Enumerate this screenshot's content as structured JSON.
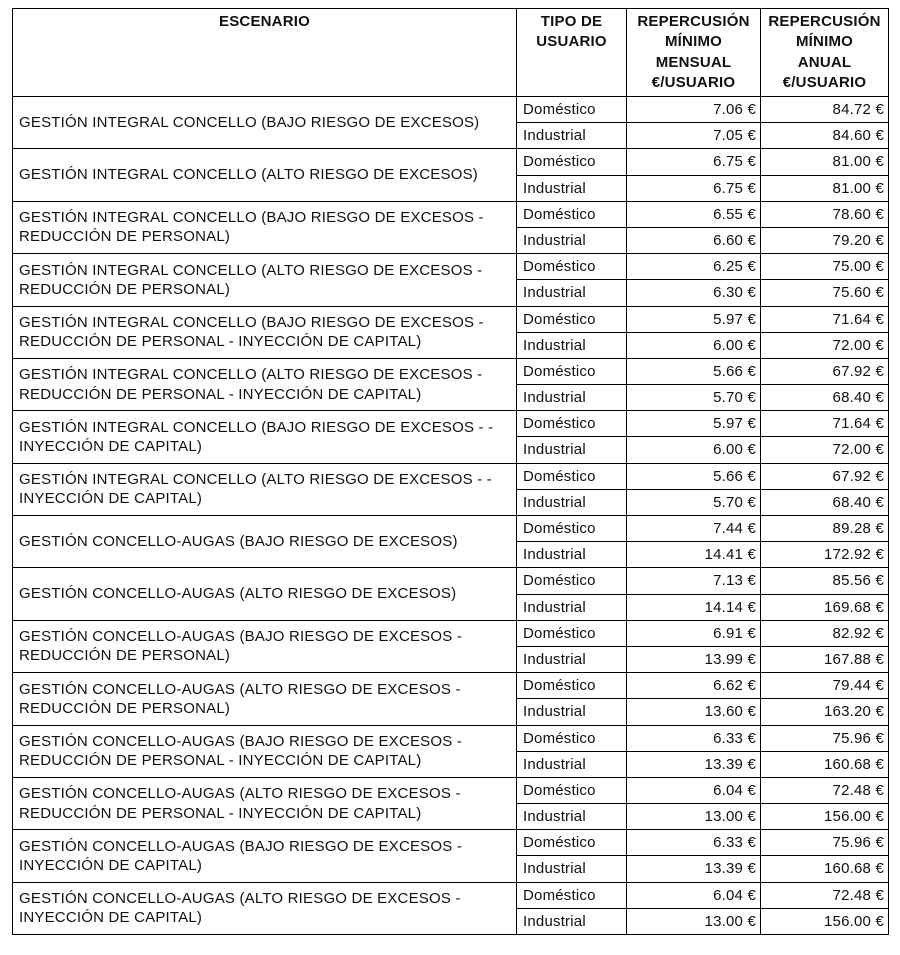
{
  "header": {
    "escenario": "ESCENARIO",
    "tipo": "TIPO DE\nUSUARIO",
    "mensual": "REPERCUSIÓN\nMÍNIMO\nMENSUAL\n€/USUARIO",
    "anual": "REPERCUSIÓN\nMÍNIMO\nANUAL\n€/USUARIO"
  },
  "groups": [
    {
      "escenario": "GESTIÓN INTEGRAL CONCELLO (BAJO RIESGO DE EXCESOS)",
      "rows": [
        {
          "tipo": "Doméstico",
          "mensual": "7.06 €",
          "anual": "84.72 €"
        },
        {
          "tipo": "Industrial",
          "mensual": "7.05 €",
          "anual": "84.60 €"
        }
      ]
    },
    {
      "escenario": "GESTIÓN INTEGRAL CONCELLO (ALTO RIESGO DE EXCESOS)",
      "rows": [
        {
          "tipo": "Doméstico",
          "mensual": "6.75 €",
          "anual": "81.00 €"
        },
        {
          "tipo": "Industrial",
          "mensual": "6.75 €",
          "anual": "81.00 €"
        }
      ]
    },
    {
      "escenario": "GESTIÓN INTEGRAL CONCELLO (BAJO RIESGO DE EXCESOS - REDUCCIÓN DE PERSONAL)",
      "rows": [
        {
          "tipo": "Doméstico",
          "mensual": "6.55 €",
          "anual": "78.60 €"
        },
        {
          "tipo": "Industrial",
          "mensual": "6.60 €",
          "anual": "79.20 €"
        }
      ]
    },
    {
      "escenario": "GESTIÓN INTEGRAL CONCELLO (ALTO RIESGO DE EXCESOS - REDUCCIÓN DE PERSONAL)",
      "rows": [
        {
          "tipo": "Doméstico",
          "mensual": "6.25 €",
          "anual": "75.00 €"
        },
        {
          "tipo": "Industrial",
          "mensual": "6.30 €",
          "anual": "75.60 €"
        }
      ]
    },
    {
      "escenario": "GESTIÓN INTEGRAL CONCELLO (BAJO RIESGO DE EXCESOS - REDUCCIÓN DE PERSONAL - INYECCIÓN DE CAPITAL)",
      "rows": [
        {
          "tipo": "Doméstico",
          "mensual": "5.97 €",
          "anual": "71.64 €"
        },
        {
          "tipo": "Industrial",
          "mensual": "6.00 €",
          "anual": "72.00 €"
        }
      ]
    },
    {
      "escenario": "GESTIÓN INTEGRAL CONCELLO (ALTO RIESGO DE EXCESOS - REDUCCIÓN DE PERSONAL - INYECCIÓN DE CAPITAL)",
      "rows": [
        {
          "tipo": "Doméstico",
          "mensual": "5.66 €",
          "anual": "67.92 €"
        },
        {
          "tipo": "Industrial",
          "mensual": "5.70 €",
          "anual": "68.40 €"
        }
      ]
    },
    {
      "escenario": "GESTIÓN INTEGRAL CONCELLO (BAJO RIESGO DE EXCESOS - - INYECCIÓN DE CAPITAL)",
      "rows": [
        {
          "tipo": "Doméstico",
          "mensual": "5.97 €",
          "anual": "71.64 €"
        },
        {
          "tipo": "Industrial",
          "mensual": "6.00 €",
          "anual": "72.00 €"
        }
      ]
    },
    {
      "escenario": "GESTIÓN INTEGRAL CONCELLO (ALTO RIESGO DE EXCESOS - - INYECCIÓN DE CAPITAL)",
      "rows": [
        {
          "tipo": "Doméstico",
          "mensual": "5.66 €",
          "anual": "67.92 €"
        },
        {
          "tipo": "Industrial",
          "mensual": "5.70 €",
          "anual": "68.40 €"
        }
      ]
    },
    {
      "escenario": "GESTIÓN CONCELLO-AUGAS (BAJO RIESGO DE EXCESOS)",
      "rows": [
        {
          "tipo": "Doméstico",
          "mensual": "7.44 €",
          "anual": "89.28 €"
        },
        {
          "tipo": "Industrial",
          "mensual": "14.41 €",
          "anual": "172.92 €"
        }
      ]
    },
    {
      "escenario": "GESTIÓN CONCELLO-AUGAS (ALTO RIESGO DE EXCESOS)",
      "rows": [
        {
          "tipo": "Doméstico",
          "mensual": "7.13 €",
          "anual": "85.56 €"
        },
        {
          "tipo": "Industrial",
          "mensual": "14.14 €",
          "anual": "169.68 €"
        }
      ]
    },
    {
      "escenario": "GESTIÓN CONCELLO-AUGAS (BAJO RIESGO DE EXCESOS - REDUCCIÓN DE PERSONAL)",
      "rows": [
        {
          "tipo": "Doméstico",
          "mensual": "6.91 €",
          "anual": "82.92 €"
        },
        {
          "tipo": "Industrial",
          "mensual": "13.99 €",
          "anual": "167.88 €"
        }
      ]
    },
    {
      "escenario": "GESTIÓN CONCELLO-AUGAS (ALTO RIESGO DE EXCESOS - REDUCCIÓN DE PERSONAL)",
      "rows": [
        {
          "tipo": "Doméstico",
          "mensual": "6.62 €",
          "anual": "79.44 €"
        },
        {
          "tipo": "Industrial",
          "mensual": "13.60 €",
          "anual": "163.20 €"
        }
      ]
    },
    {
      "escenario": "GESTIÓN CONCELLO-AUGAS (BAJO RIESGO DE EXCESOS - REDUCCIÓN DE PERSONAL - INYECCIÓN DE CAPITAL)",
      "rows": [
        {
          "tipo": "Doméstico",
          "mensual": "6.33 €",
          "anual": "75.96 €"
        },
        {
          "tipo": "Industrial",
          "mensual": "13.39 €",
          "anual": "160.68 €"
        }
      ]
    },
    {
      "escenario": "GESTIÓN CONCELLO-AUGAS (ALTO RIESGO DE EXCESOS - REDUCCIÓN DE PERSONAL - INYECCIÓN DE CAPITAL)",
      "rows": [
        {
          "tipo": "Doméstico",
          "mensual": "6.04 €",
          "anual": "72.48 €"
        },
        {
          "tipo": "Industrial",
          "mensual": "13.00 €",
          "anual": "156.00 €"
        }
      ]
    },
    {
      "escenario": "GESTIÓN CONCELLO-AUGAS (BAJO RIESGO DE EXCESOS - INYECCIÓN DE CAPITAL)",
      "rows": [
        {
          "tipo": "Doméstico",
          "mensual": "6.33 €",
          "anual": "75.96 €"
        },
        {
          "tipo": "Industrial",
          "mensual": "13.39 €",
          "anual": "160.68 €"
        }
      ]
    },
    {
      "escenario": "GESTIÓN CONCELLO-AUGAS (ALTO RIESGO DE EXCESOS - INYECCIÓN DE CAPITAL)",
      "rows": [
        {
          "tipo": "Doméstico",
          "mensual": "6.04 €",
          "anual": "72.48 €"
        },
        {
          "tipo": "Industrial",
          "mensual": "13.00 €",
          "anual": "156.00 €"
        }
      ]
    }
  ]
}
